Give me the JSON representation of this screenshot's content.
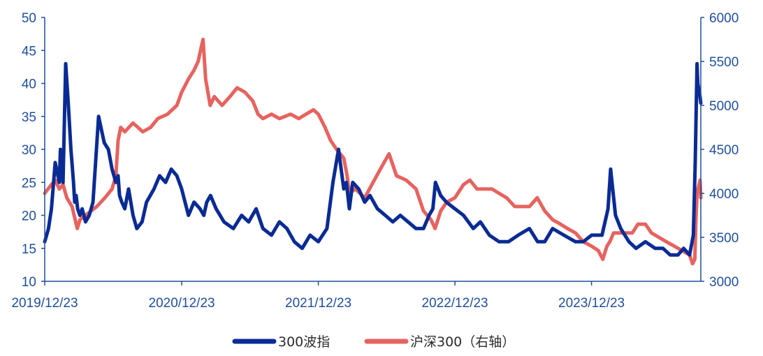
{
  "chart_data": {
    "type": "line",
    "title": "",
    "colors": {
      "axis": "#1f4e9c",
      "series_vol": "#0a2b94",
      "series_idx": "#e6635f"
    },
    "x_ticks": [
      "2019/12/23",
      "2020/12/23",
      "2021/12/23",
      "2022/12/23",
      "2023/12/23"
    ],
    "x_range": [
      "2019/12/23",
      "2024/10/10"
    ],
    "y_left": {
      "ticks": [
        10,
        15,
        20,
        25,
        30,
        35,
        40,
        45,
        50
      ],
      "ylim": [
        10,
        50
      ]
    },
    "y_right": {
      "ticks": [
        3000,
        3500,
        4000,
        4500,
        5000,
        5500,
        6000
      ],
      "ylim": [
        3000,
        6000
      ]
    },
    "legend_position": "bottom",
    "series": [
      {
        "name": "300波指",
        "axis": "left",
        "x": [
          "2019/12/23",
          "2020/01/02",
          "2020/01/10",
          "2020/01/20",
          "2020/01/31",
          "2020/02/03",
          "2020/02/10",
          "2020/02/17",
          "2020/02/24",
          "2020/03/02",
          "2020/03/09",
          "2020/03/12",
          "2020/03/16",
          "2020/03/20",
          "2020/03/26",
          "2020/04/01",
          "2020/04/10",
          "2020/04/20",
          "2020/04/30",
          "2020/05/15",
          "2020/05/30",
          "2020/06/10",
          "2020/06/20",
          "2020/06/30",
          "2020/07/06",
          "2020/07/10",
          "2020/07/16",
          "2020/07/24",
          "2020/08/03",
          "2020/08/15",
          "2020/08/25",
          "2020/09/08",
          "2020/09/20",
          "2020/10/10",
          "2020/10/25",
          "2020/11/10",
          "2020/11/25",
          "2020/12/10",
          "2020/12/23",
          "2021/01/10",
          "2021/01/25",
          "2021/02/10",
          "2021/02/20",
          "2021/02/28",
          "2021/03/10",
          "2021/03/25",
          "2021/04/15",
          "2021/05/10",
          "2021/06/01",
          "2021/06/20",
          "2021/07/10",
          "2021/07/28",
          "2021/08/20",
          "2021/09/10",
          "2021/09/30",
          "2021/10/20",
          "2021/11/10",
          "2021/12/01",
          "2021/12/23",
          "2022/01/15",
          "2022/01/31",
          "2022/02/15",
          "2022/03/01",
          "2022/03/08",
          "2022/03/16",
          "2022/03/25",
          "2022/04/10",
          "2022/04/26",
          "2022/05/10",
          "2022/05/30",
          "2022/06/20",
          "2022/07/10",
          "2022/07/30",
          "2022/08/20",
          "2022/09/10",
          "2022/09/30",
          "2022/10/15",
          "2022/10/25",
          "2022/11/01",
          "2022/11/15",
          "2022/11/30",
          "2022/12/23",
          "2023/01/15",
          "2023/02/10",
          "2023/03/01",
          "2023/03/25",
          "2023/04/20",
          "2023/05/15",
          "2023/06/10",
          "2023/07/10",
          "2023/08/01",
          "2023/08/20",
          "2023/09/10",
          "2023/10/10",
          "2023/11/10",
          "2023/12/01",
          "2023/12/23",
          "2024/01/20",
          "2024/02/05",
          "2024/02/12",
          "2024/02/25",
          "2024/03/10",
          "2024/04/01",
          "2024/04/20",
          "2024/05/15",
          "2024/06/10",
          "2024/07/01",
          "2024/07/20",
          "2024/08/10",
          "2024/08/25",
          "2024/09/10",
          "2024/09/20",
          "2024/09/25",
          "2024/09/30",
          "2024/10/02",
          "2024/10/08",
          "2024/10/10"
        ],
        "values": [
          16,
          18,
          21,
          28,
          25,
          30,
          25,
          43,
          37,
          30,
          25,
          22,
          23,
          21,
          20,
          21,
          19,
          20,
          22,
          35,
          31,
          30,
          27,
          25,
          26,
          23,
          22,
          21,
          24,
          20,
          18,
          19,
          22,
          24,
          26,
          25,
          27,
          26,
          24,
          20,
          22,
          21,
          20,
          22,
          23,
          21,
          19,
          18,
          20,
          19,
          21,
          18,
          17,
          19,
          18,
          16,
          15,
          17,
          16,
          18,
          25,
          30,
          24,
          25,
          21,
          25,
          24,
          22,
          23,
          21,
          20,
          19,
          20,
          19,
          18,
          18,
          20,
          21,
          25,
          23,
          22,
          21,
          20,
          18,
          19,
          17,
          16,
          16,
          17,
          18,
          16,
          16,
          18,
          17,
          16,
          16,
          17,
          17,
          21,
          27,
          20,
          18,
          16,
          15,
          16,
          15,
          15,
          14,
          14,
          15,
          14,
          17,
          28,
          43,
          40,
          38,
          37
        ]
      },
      {
        "name": "沪深300（右轴）",
        "axis": "right",
        "x": [
          "2019/12/23",
          "2020/01/10",
          "2020/01/20",
          "2020/01/31",
          "2020/02/10",
          "2020/02/20",
          "2020/03/05",
          "2020/03/19",
          "2020/03/26",
          "2020/04/10",
          "2020/04/25",
          "2020/05/10",
          "2020/06/01",
          "2020/06/20",
          "2020/06/30",
          "2020/07/06",
          "2020/07/13",
          "2020/07/24",
          "2020/08/15",
          "2020/09/10",
          "2020/10/01",
          "2020/10/20",
          "2020/11/15",
          "2020/12/10",
          "2020/12/23",
          "2021/01/10",
          "2021/01/25",
          "2021/02/05",
          "2021/02/10",
          "2021/02/18",
          "2021/02/25",
          "2021/03/09",
          "2021/03/20",
          "2021/04/10",
          "2021/05/01",
          "2021/05/20",
          "2021/06/10",
          "2021/07/01",
          "2021/07/15",
          "2021/07/28",
          "2021/08/20",
          "2021/09/10",
          "2021/10/10",
          "2021/11/01",
          "2021/11/20",
          "2021/12/10",
          "2021/12/23",
          "2022/01/10",
          "2022/01/25",
          "2022/02/10",
          "2022/03/01",
          "2022/03/10",
          "2022/03/16",
          "2022/04/01",
          "2022/04/26",
          "2022/05/15",
          "2022/06/10",
          "2022/06/30",
          "2022/07/20",
          "2022/08/15",
          "2022/09/10",
          "2022/09/30",
          "2022/10/20",
          "2022/10/31",
          "2022/11/15",
          "2022/12/01",
          "2022/12/23",
          "2023/01/15",
          "2023/02/01",
          "2023/02/20",
          "2023/03/10",
          "2023/04/01",
          "2023/04/20",
          "2023/05/10",
          "2023/06/01",
          "2023/06/20",
          "2023/07/10",
          "2023/07/31",
          "2023/08/20",
          "2023/09/10",
          "2023/10/01",
          "2023/10/20",
          "2023/11/10",
          "2023/12/01",
          "2023/12/23",
          "2024/01/10",
          "2024/01/22",
          "2024/02/02",
          "2024/02/10",
          "2024/02/20",
          "2024/03/01",
          "2024/03/20",
          "2024/04/10",
          "2024/04/25",
          "2024/05/15",
          "2024/05/31",
          "2024/06/20",
          "2024/07/10",
          "2024/07/31",
          "2024/08/20",
          "2024/09/10",
          "2024/09/18",
          "2024/09/24",
          "2024/09/27",
          "2024/09/30",
          "2024/10/08",
          "2024/10/10"
        ],
        "values": [
          4000,
          4100,
          4150,
          4050,
          4100,
          3950,
          3850,
          3600,
          3700,
          3750,
          3800,
          3850,
          3950,
          4050,
          4200,
          4600,
          4750,
          4700,
          4800,
          4700,
          4750,
          4850,
          4900,
          5000,
          5150,
          5300,
          5400,
          5500,
          5600,
          5750,
          5300,
          5000,
          5100,
          5000,
          5100,
          5200,
          5150,
          5050,
          4900,
          4850,
          4900,
          4850,
          4900,
          4850,
          4900,
          4950,
          4900,
          4750,
          4600,
          4500,
          4400,
          4200,
          4000,
          4050,
          3950,
          4100,
          4300,
          4450,
          4200,
          4150,
          4050,
          3800,
          3700,
          3600,
          3800,
          3900,
          3950,
          4100,
          4150,
          4050,
          4050,
          4050,
          4000,
          3950,
          3850,
          3850,
          3850,
          3950,
          3800,
          3700,
          3650,
          3600,
          3550,
          3450,
          3400,
          3350,
          3250,
          3400,
          3450,
          3550,
          3550,
          3550,
          3550,
          3650,
          3650,
          3550,
          3500,
          3450,
          3400,
          3350,
          3300,
          3200,
          3250,
          3700,
          4000,
          4150,
          3950
        ]
      }
    ]
  }
}
